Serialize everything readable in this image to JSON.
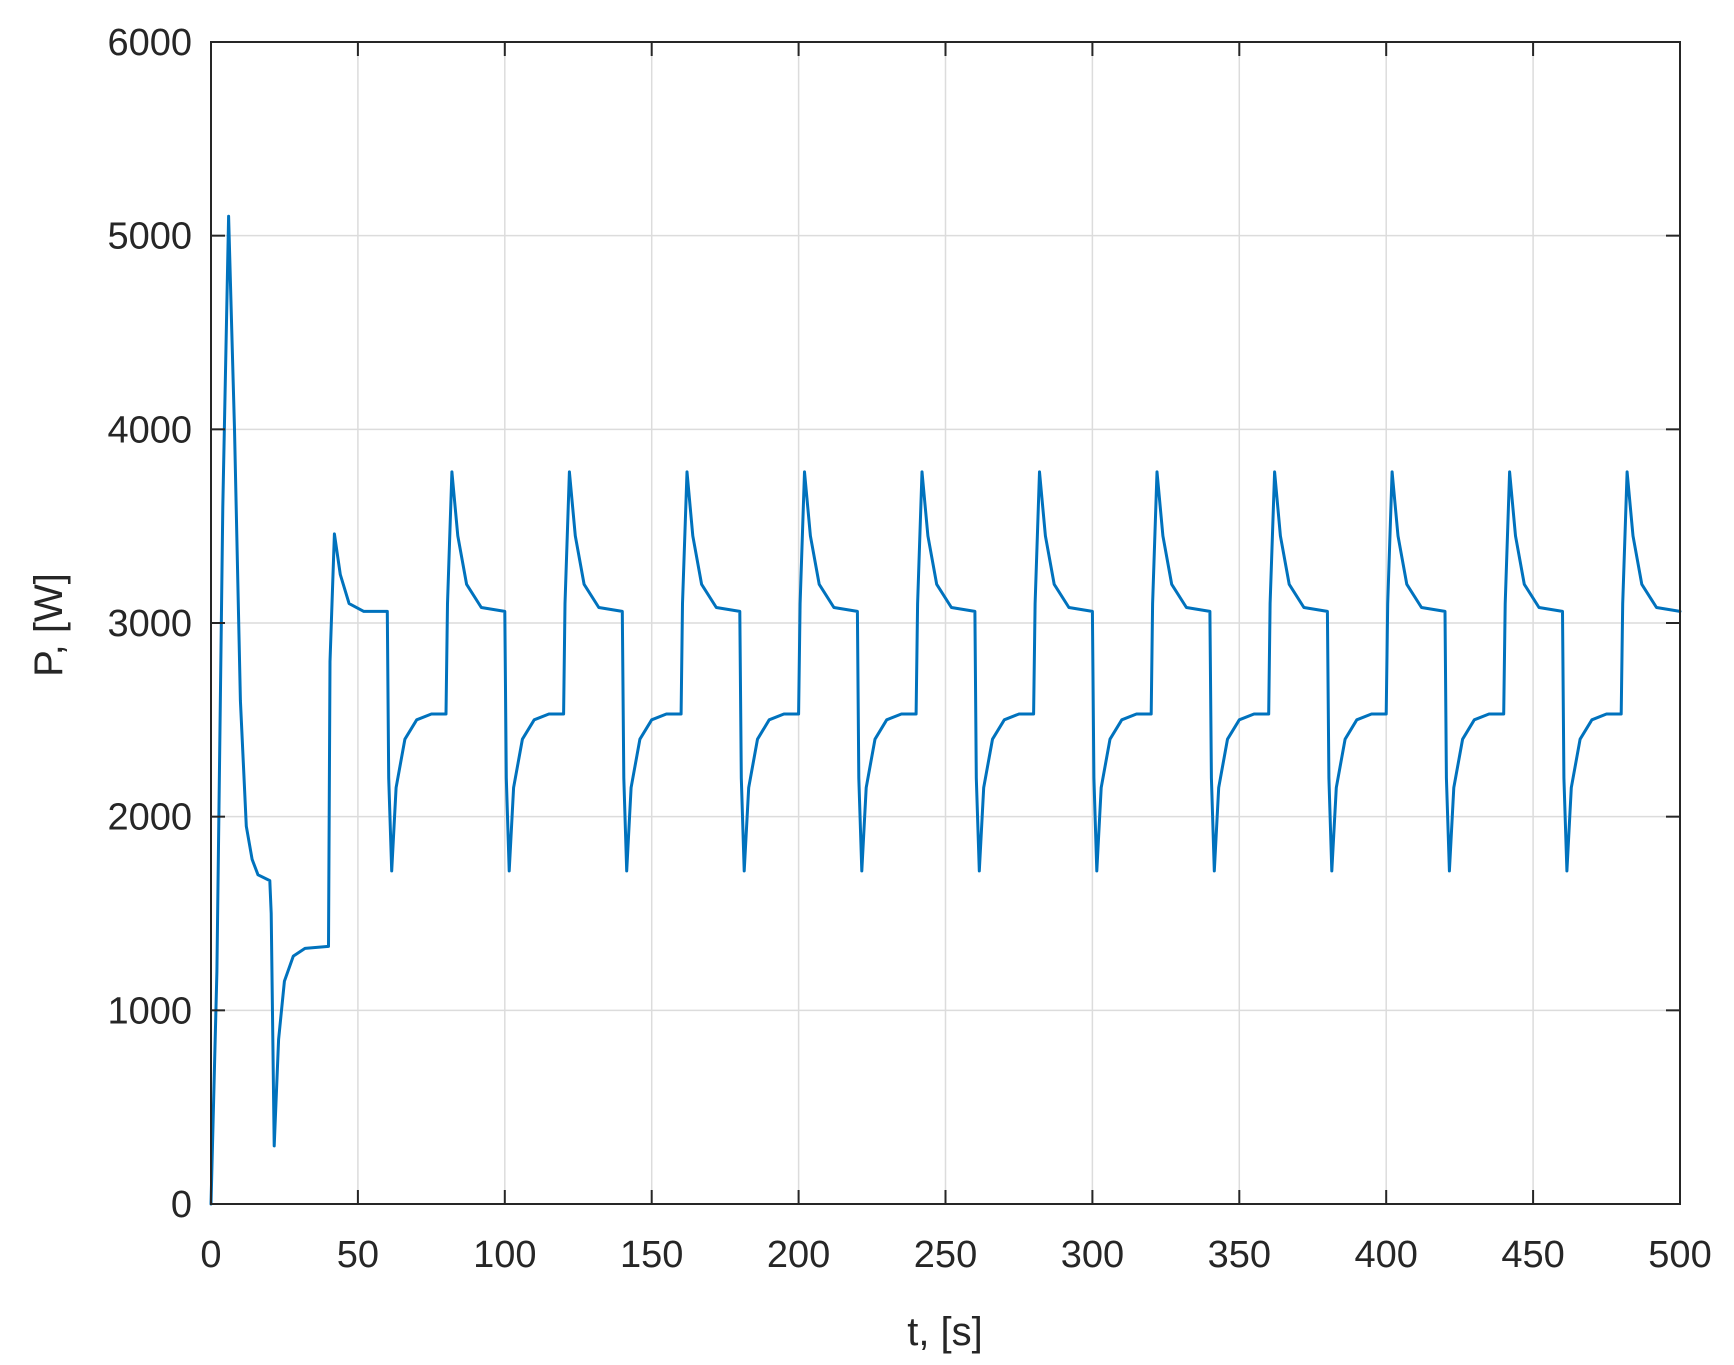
{
  "chart_data": {
    "type": "line",
    "title": "",
    "xlabel": "t, [s]",
    "ylabel": "P, [W]",
    "xlim": [
      0,
      500
    ],
    "ylim": [
      0,
      6000
    ],
    "x_ticks": [
      0,
      50,
      100,
      150,
      200,
      250,
      300,
      350,
      400,
      450,
      500
    ],
    "y_ticks": [
      0,
      1000,
      2000,
      3000,
      4000,
      5000,
      6000
    ],
    "x_tick_labels": [
      "0",
      "50",
      "100",
      "150",
      "200",
      "250",
      "300",
      "350",
      "400",
      "450",
      "500"
    ],
    "y_tick_labels": [
      "0",
      "1000",
      "2000",
      "3000",
      "4000",
      "5000",
      "6000"
    ],
    "grid": true,
    "legend": "none",
    "series": [
      {
        "color": "#0072BD",
        "points": [
          [
            0,
            0
          ],
          [
            2,
            1200
          ],
          [
            4,
            3600
          ],
          [
            6,
            5100
          ],
          [
            8,
            4000
          ],
          [
            10,
            2600
          ],
          [
            12,
            1950
          ],
          [
            14,
            1780
          ],
          [
            16,
            1700
          ],
          [
            20,
            1670
          ],
          [
            20.5,
            1500
          ],
          [
            21.5,
            300
          ],
          [
            23,
            850
          ],
          [
            25,
            1150
          ],
          [
            28,
            1280
          ],
          [
            32,
            1320
          ],
          [
            40,
            1330
          ],
          [
            40.5,
            2800
          ],
          [
            42,
            3460
          ],
          [
            44,
            3250
          ],
          [
            47,
            3100
          ],
          [
            52,
            3060
          ],
          [
            60,
            3060
          ],
          [
            60.5,
            2200
          ],
          [
            61.5,
            1720
          ],
          [
            63,
            2150
          ],
          [
            66,
            2400
          ],
          [
            70,
            2500
          ],
          [
            75,
            2530
          ],
          [
            80,
            2530
          ],
          [
            80.5,
            3100
          ],
          [
            82,
            3780
          ],
          [
            84,
            3450
          ],
          [
            87,
            3200
          ],
          [
            92,
            3080
          ],
          [
            100,
            3060
          ],
          [
            100.5,
            2200
          ],
          [
            101.5,
            1720
          ],
          [
            103,
            2150
          ],
          [
            106,
            2400
          ],
          [
            110,
            2500
          ],
          [
            115,
            2530
          ],
          [
            120,
            2530
          ],
          [
            120.5,
            3100
          ],
          [
            122,
            3780
          ],
          [
            124,
            3450
          ],
          [
            127,
            3200
          ],
          [
            132,
            3080
          ],
          [
            140,
            3060
          ],
          [
            140.5,
            2200
          ],
          [
            141.5,
            1720
          ],
          [
            143,
            2150
          ],
          [
            146,
            2400
          ],
          [
            150,
            2500
          ],
          [
            155,
            2530
          ],
          [
            160,
            2530
          ],
          [
            160.5,
            3100
          ],
          [
            162,
            3780
          ],
          [
            164,
            3450
          ],
          [
            167,
            3200
          ],
          [
            172,
            3080
          ],
          [
            180,
            3060
          ],
          [
            180.5,
            2200
          ],
          [
            181.5,
            1720
          ],
          [
            183,
            2150
          ],
          [
            186,
            2400
          ],
          [
            190,
            2500
          ],
          [
            195,
            2530
          ],
          [
            200,
            2530
          ],
          [
            200.5,
            3100
          ],
          [
            202,
            3780
          ],
          [
            204,
            3450
          ],
          [
            207,
            3200
          ],
          [
            212,
            3080
          ],
          [
            220,
            3060
          ],
          [
            220.5,
            2200
          ],
          [
            221.5,
            1720
          ],
          [
            223,
            2150
          ],
          [
            226,
            2400
          ],
          [
            230,
            2500
          ],
          [
            235,
            2530
          ],
          [
            240,
            2530
          ],
          [
            240.5,
            3100
          ],
          [
            242,
            3780
          ],
          [
            244,
            3450
          ],
          [
            247,
            3200
          ],
          [
            252,
            3080
          ],
          [
            260,
            3060
          ],
          [
            260.5,
            2200
          ],
          [
            261.5,
            1720
          ],
          [
            263,
            2150
          ],
          [
            266,
            2400
          ],
          [
            270,
            2500
          ],
          [
            275,
            2530
          ],
          [
            280,
            2530
          ],
          [
            280.5,
            3100
          ],
          [
            282,
            3780
          ],
          [
            284,
            3450
          ],
          [
            287,
            3200
          ],
          [
            292,
            3080
          ],
          [
            300,
            3060
          ],
          [
            300.5,
            2200
          ],
          [
            301.5,
            1720
          ],
          [
            303,
            2150
          ],
          [
            306,
            2400
          ],
          [
            310,
            2500
          ],
          [
            315,
            2530
          ],
          [
            320,
            2530
          ],
          [
            320.5,
            3100
          ],
          [
            322,
            3780
          ],
          [
            324,
            3450
          ],
          [
            327,
            3200
          ],
          [
            332,
            3080
          ],
          [
            340,
            3060
          ],
          [
            340.5,
            2200
          ],
          [
            341.5,
            1720
          ],
          [
            343,
            2150
          ],
          [
            346,
            2400
          ],
          [
            350,
            2500
          ],
          [
            355,
            2530
          ],
          [
            360,
            2530
          ],
          [
            360.5,
            3100
          ],
          [
            362,
            3780
          ],
          [
            364,
            3450
          ],
          [
            367,
            3200
          ],
          [
            372,
            3080
          ],
          [
            380,
            3060
          ],
          [
            380.5,
            2200
          ],
          [
            381.5,
            1720
          ],
          [
            383,
            2150
          ],
          [
            386,
            2400
          ],
          [
            390,
            2500
          ],
          [
            395,
            2530
          ],
          [
            400,
            2530
          ],
          [
            400.5,
            3100
          ],
          [
            402,
            3780
          ],
          [
            404,
            3450
          ],
          [
            407,
            3200
          ],
          [
            412,
            3080
          ],
          [
            420,
            3060
          ],
          [
            420.5,
            2200
          ],
          [
            421.5,
            1720
          ],
          [
            423,
            2150
          ],
          [
            426,
            2400
          ],
          [
            430,
            2500
          ],
          [
            435,
            2530
          ],
          [
            440,
            2530
          ],
          [
            440.5,
            3100
          ],
          [
            442,
            3780
          ],
          [
            444,
            3450
          ],
          [
            447,
            3200
          ],
          [
            452,
            3080
          ],
          [
            460,
            3060
          ],
          [
            460.5,
            2200
          ],
          [
            461.5,
            1720
          ],
          [
            463,
            2150
          ],
          [
            466,
            2400
          ],
          [
            470,
            2500
          ],
          [
            475,
            2530
          ],
          [
            480,
            2530
          ],
          [
            480.5,
            3100
          ],
          [
            482,
            3780
          ],
          [
            484,
            3450
          ],
          [
            487,
            3200
          ],
          [
            492,
            3080
          ],
          [
            500,
            3060
          ]
        ]
      }
    ]
  }
}
